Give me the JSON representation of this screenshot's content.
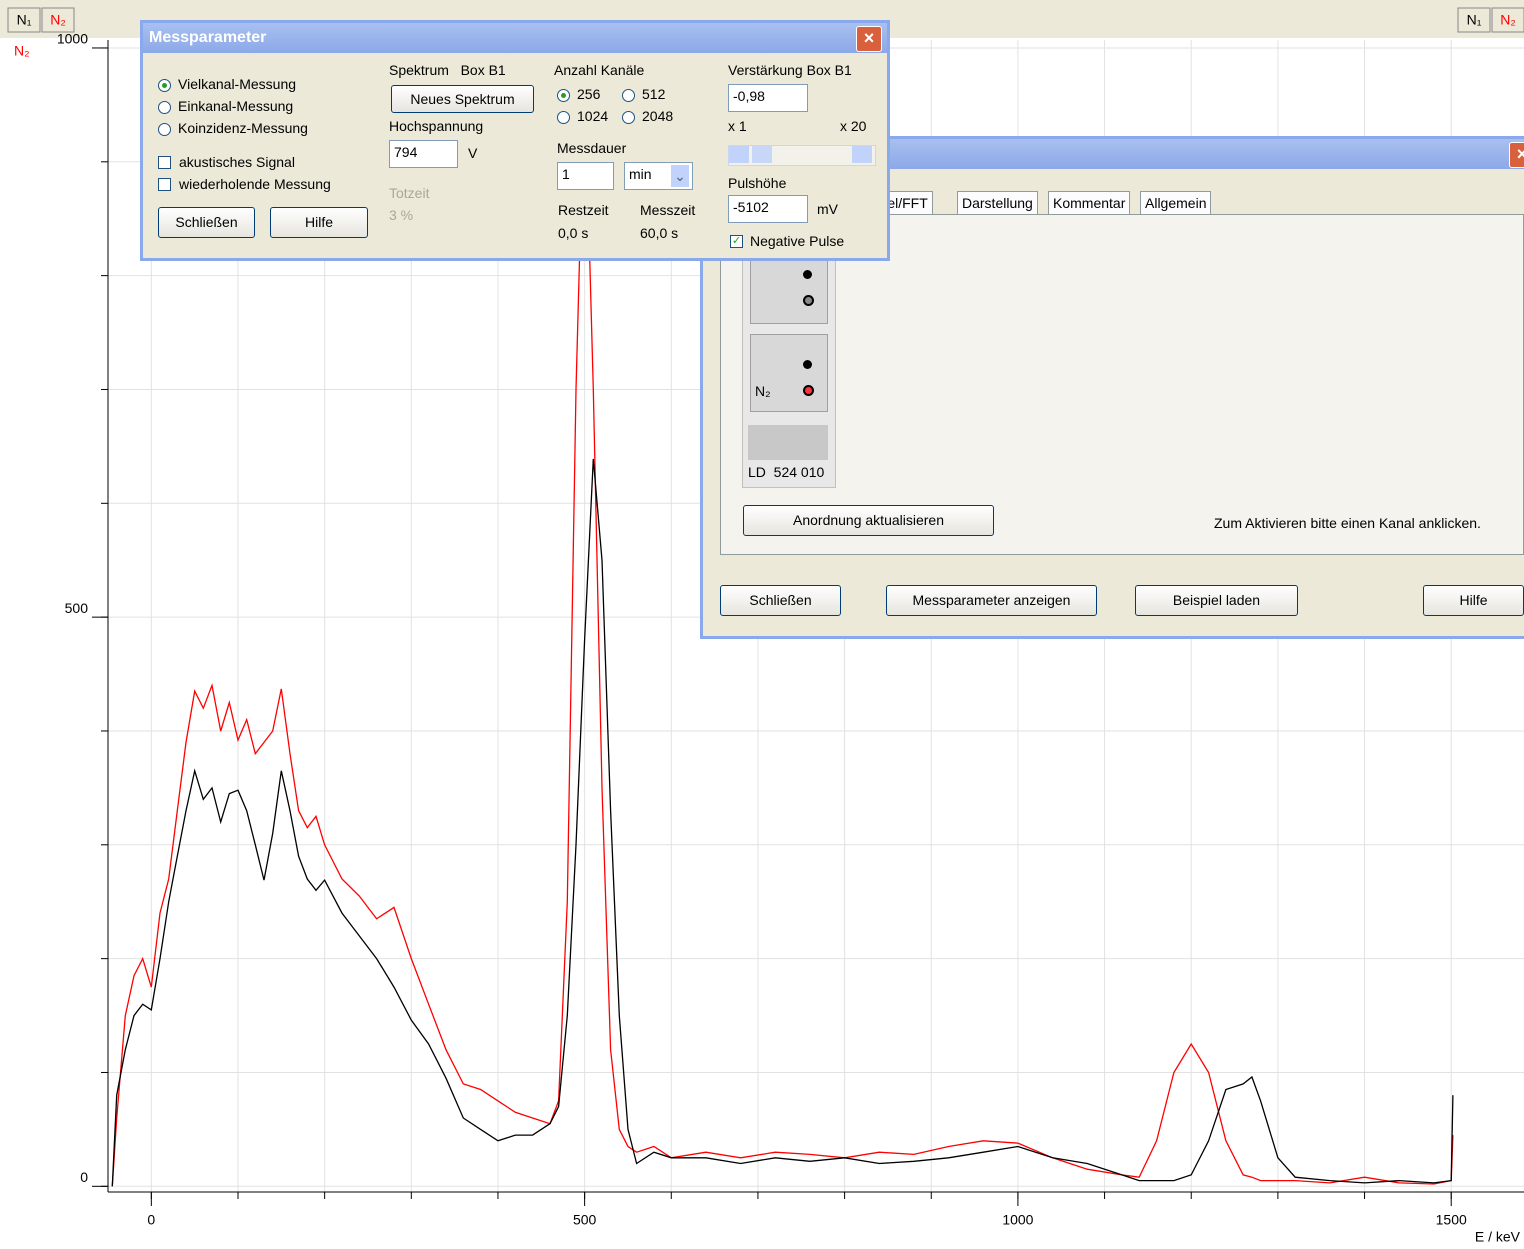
{
  "toolbar": {
    "right": [
      "N₁",
      "N₂"
    ]
  },
  "chart_data": {
    "type": "line",
    "y_axis_label": "N₂",
    "x_axis_label": "E / keV",
    "x": [
      -45,
      -40,
      -30,
      -20,
      -10,
      0,
      10,
      20,
      30,
      40,
      50,
      60,
      70,
      80,
      90,
      100,
      110,
      120,
      130,
      140,
      150,
      160,
      170,
      180,
      190,
      200,
      220,
      240,
      260,
      280,
      300,
      320,
      340,
      360,
      380,
      400,
      420,
      440,
      460,
      470,
      480,
      490,
      500,
      510,
      520,
      530,
      540,
      550,
      560,
      580,
      600,
      640,
      680,
      720,
      760,
      800,
      840,
      880,
      920,
      960,
      1000,
      1040,
      1080,
      1120,
      1140,
      1160,
      1180,
      1200,
      1220,
      1240,
      1260,
      1270,
      1280,
      1300,
      1320,
      1360,
      1400,
      1440,
      1480,
      1500,
      1502
    ],
    "series": [
      {
        "name": "N₁",
        "color": "#000000",
        "values": [
          0,
          80,
          120,
          150,
          160,
          155,
          200,
          250,
          290,
          330,
          365,
          340,
          350,
          320,
          345,
          348,
          330,
          300,
          269,
          310,
          365,
          330,
          290,
          270,
          260,
          269,
          240,
          220,
          200,
          175,
          146,
          125,
          95,
          60,
          50,
          40,
          45,
          45,
          55,
          70,
          150,
          300,
          480,
          639,
          550,
          330,
          150,
          50,
          20,
          30,
          25,
          25,
          20,
          25,
          22,
          25,
          20,
          22,
          25,
          30,
          35,
          25,
          20,
          10,
          5,
          5,
          5,
          10,
          40,
          85,
          90,
          96,
          75,
          25,
          8,
          5,
          3,
          5,
          3,
          5,
          80
        ]
      },
      {
        "name": "N₂",
        "color": "#ff0000",
        "values": [
          0,
          60,
          150,
          185,
          200,
          175,
          240,
          270,
          330,
          390,
          435,
          420,
          440,
          400,
          425,
          392,
          410,
          380,
          390,
          400,
          437,
          380,
          330,
          315,
          325,
          300,
          270,
          255,
          235,
          245,
          200,
          160,
          120,
          90,
          85,
          75,
          65,
          60,
          55,
          75,
          250,
          700,
          980,
          700,
          350,
          120,
          50,
          35,
          30,
          35,
          25,
          30,
          25,
          30,
          28,
          25,
          30,
          28,
          35,
          40,
          38,
          25,
          15,
          10,
          8,
          40,
          100,
          125,
          100,
          40,
          10,
          8,
          5,
          5,
          5,
          3,
          8,
          3,
          2,
          5,
          45
        ]
      }
    ],
    "xlim": [
      -50,
      1584
    ],
    "ylim": [
      -5,
      1007
    ],
    "xticks": [
      0,
      500,
      1000,
      1500
    ],
    "yticks": [
      0,
      500,
      1000
    ],
    "xgrid": [
      0,
      100,
      200,
      300,
      400,
      500,
      600,
      700,
      800,
      900,
      1000,
      1100,
      1200,
      1300,
      1400,
      1500
    ],
    "ygrid": [
      0,
      100,
      200,
      300,
      400,
      500,
      600,
      700,
      800,
      900,
      1000
    ],
    "grid": true
  },
  "messparameter": {
    "title": "Messparameter",
    "modes": [
      "Vielkanal-Messung",
      "Einkanal-Messung",
      "Koinzidenz-Messung"
    ],
    "options": [
      "akustisches Signal",
      "wiederholende Messung"
    ],
    "buttons": [
      "Schließen",
      "Hilfe"
    ],
    "spektrum": "Spektrum   Box B1",
    "neues_spektrum": "Neues Spektrum",
    "hochspannung": "Hochspannung",
    "hochspannung_value": "794",
    "hochspannung_unit": "V",
    "totzeit": "Totzeit",
    "totzeit_value": "3 %",
    "kanaele": "Anzahl Kanäle",
    "kanaele_options": [
      "256",
      "512",
      "1024",
      "2048"
    ],
    "messdauer": "Messdauer",
    "messdauer_value": "1",
    "messdauer_unit": "min",
    "restzeit": "Restzeit",
    "restzeit_value": "0,0 s",
    "messzeit": "Messzeit",
    "messzeit_value": "60,0 s",
    "verstaerkung": "Verstärkung Box B1",
    "verstaerkung_value": "-0,98",
    "scale_min": "x 1",
    "scale_max": "x 20",
    "pulshoehe": "Pulshöhe",
    "pulshoehe_value": "-5102",
    "pulshoehe_unit": "mV",
    "negative_pulse": "Negative Pulse"
  },
  "settings": {
    "tabs": [
      "rmel/FFT",
      "Darstellung",
      "Kommentar",
      "Allgemein"
    ],
    "channel": "N₂",
    "device": "LD  524 010",
    "arrange": "Anordnung aktualisieren",
    "hint": "Zum Aktivieren bitte einen Kanal anklicken.",
    "buttons": [
      "Schließen",
      "Messparameter anzeigen",
      "Beispiel laden",
      "Hilfe"
    ]
  }
}
